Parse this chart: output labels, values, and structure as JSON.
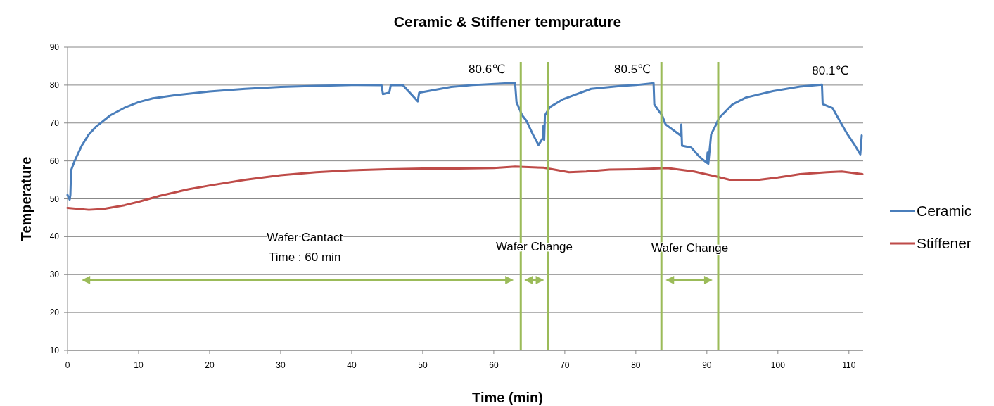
{
  "chart_data": {
    "type": "line",
    "title": "Ceramic & Stiffener tempurature",
    "xlabel": "Time (min)",
    "ylabel": "Temperature",
    "xlim": [
      0,
      112
    ],
    "xticks": [
      0,
      10,
      20,
      30,
      40,
      50,
      60,
      70,
      80,
      90,
      100,
      110
    ],
    "ylim": [
      10,
      90
    ],
    "yticks": [
      10,
      20,
      30,
      40,
      50,
      60,
      70,
      80,
      90
    ],
    "grid": "y",
    "legend": "right",
    "marker": "none",
    "line_style": "solid",
    "series": [
      {
        "name": "Ceramic",
        "color": "#4a7ebb",
        "x": [
          0,
          0.3,
          0.4,
          0.5,
          1,
          2,
          3,
          4,
          5,
          6,
          8,
          10,
          12,
          15,
          20,
          25,
          30,
          35,
          40,
          44.2,
          44.4,
          45.3,
          45.5,
          47.2,
          49.3,
          49.5,
          54,
          57,
          62,
          63,
          63.2,
          64,
          64.6,
          65.5,
          66.3,
          66.9,
          67,
          67.1,
          67.2,
          67.9,
          69.8,
          73.7,
          78,
          80,
          82.5,
          82.6,
          83.3,
          83.7,
          84.2,
          86.3,
          86.4,
          86.5,
          87.8,
          89,
          90,
          90.1,
          90.2,
          90.6,
          91.3,
          91.7,
          93.6,
          95.5,
          99.3,
          103.1,
          106.2,
          106.3,
          107.7,
          108.9,
          109.7,
          110.8,
          111.6,
          111.8
        ],
        "values": [
          51,
          49.8,
          51,
          57.5,
          60,
          64,
          67,
          69,
          70.5,
          72,
          74,
          75.5,
          76.5,
          77.3,
          78.3,
          79,
          79.5,
          79.8,
          80,
          80,
          77.6,
          78,
          80,
          80,
          75.7,
          78,
          79.5,
          80,
          80.5,
          80.6,
          75.5,
          72,
          70.6,
          67,
          64.2,
          66,
          69.3,
          65.5,
          72,
          74.2,
          76.3,
          79,
          79.8,
          80,
          80.5,
          74.9,
          73,
          72,
          69.6,
          66.7,
          69.6,
          64,
          63.5,
          61,
          59.5,
          62.2,
          59.2,
          67,
          69.6,
          71.3,
          74.9,
          76.7,
          78.4,
          79.6,
          80.1,
          75,
          73.9,
          69.9,
          67.3,
          64.2,
          61.7,
          66.7
        ]
      },
      {
        "name": "Stiffener",
        "color": "#be4b48",
        "x": [
          0,
          3,
          5,
          8,
          10,
          13,
          17,
          20,
          25,
          30,
          35,
          40,
          45,
          50,
          55,
          60,
          63,
          67,
          70.6,
          73,
          76.3,
          80,
          84.4,
          88.2,
          91.3,
          93.2,
          97.4,
          100,
          103.1,
          106.9,
          109,
          111.9
        ],
        "values": [
          47.6,
          47.1,
          47.3,
          48.3,
          49.2,
          50.8,
          52.5,
          53.5,
          55,
          56.2,
          57,
          57.5,
          57.8,
          58,
          58,
          58.1,
          58.5,
          58.2,
          57,
          57.2,
          57.7,
          57.8,
          58.1,
          57.2,
          55.9,
          55,
          55,
          55.6,
          56.5,
          57,
          57.2,
          56.5
        ]
      }
    ],
    "ref_lines": [
      {
        "axis": "x",
        "value": 63.8,
        "color": "#9bbb59"
      },
      {
        "axis": "x",
        "value": 67.6,
        "color": "#9bbb59"
      },
      {
        "axis": "x",
        "value": 83.6,
        "color": "#9bbb59"
      },
      {
        "axis": "x",
        "value": 91.6,
        "color": "#9bbb59"
      }
    ],
    "annotations": [
      "80.6℃",
      "80.5℃",
      "80.1℃",
      "Wafer Cantact\nTime : 60 min",
      "Wafer Change",
      "Wafer Change"
    ]
  }
}
